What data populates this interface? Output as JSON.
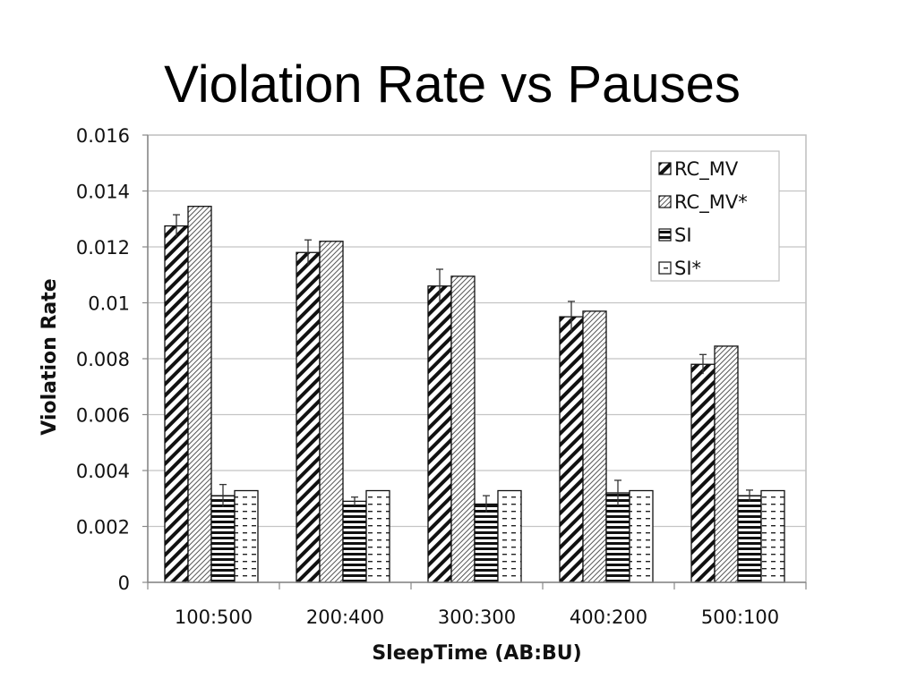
{
  "slide": {
    "title": "Violation Rate vs Pauses"
  },
  "chart_data": {
    "type": "bar",
    "title": "Violation Rate vs Pauses",
    "xlabel": "SleepTime (AB:BU)",
    "ylabel": "Violation Rate",
    "ylim": [
      0,
      0.016
    ],
    "yticks": [
      "0",
      "0.002",
      "0.004",
      "0.006",
      "0.008",
      "0.01",
      "0.012",
      "0.014",
      "0.016"
    ],
    "grid": true,
    "legend_position": "top-right",
    "categories": [
      "100:500",
      "200:400",
      "300:300",
      "400:200",
      "500:100"
    ],
    "series": [
      {
        "name": "RC_MV",
        "pattern": "diagonal-hatch",
        "values": [
          0.01275,
          0.0118,
          0.0106,
          0.0095,
          0.0078
        ],
        "error": [
          0.0004,
          0.00045,
          0.0006,
          0.00055,
          0.00035
        ]
      },
      {
        "name": "RC_MV*",
        "pattern": "fine-hatch",
        "values": [
          0.01345,
          0.0122,
          0.01095,
          0.0097,
          0.00845
        ]
      },
      {
        "name": "SI",
        "pattern": "horizontal-lines",
        "values": [
          0.0031,
          0.0029,
          0.0028,
          0.0032,
          0.0031
        ],
        "error": [
          0.0004,
          0.00015,
          0.0003,
          0.00045,
          0.0002
        ]
      },
      {
        "name": "SI*",
        "pattern": "dashed-lines",
        "values": [
          0.00328,
          0.00328,
          0.00328,
          0.00328,
          0.00328
        ]
      }
    ]
  }
}
